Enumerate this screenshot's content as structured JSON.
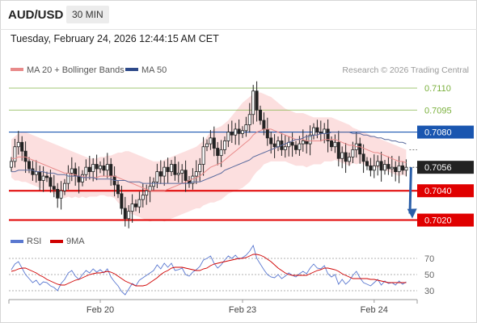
{
  "header": {
    "symbol": "AUD/USD",
    "timeframe": "30 MIN"
  },
  "datetime": "Tuesday, February 24, 2026 12:44:15 AM CET",
  "legend": {
    "ma20_label": "MA 20 + Bollinger Bands",
    "ma50_label": "MA 50",
    "copyright": "Research © 2026 Trading Central"
  },
  "rsi_legend": {
    "rsi_label": "RSI",
    "ma_label": "9MA"
  },
  "colors": {
    "bullish": "#333333",
    "bearish": "#333333",
    "ma20": "#e88a8a",
    "band": "#fbd9d9",
    "ma50": "#5b6b9e",
    "support": "#e00000",
    "pivot": "#1a56b0",
    "resistance": "#7ab03c",
    "arrow": "#2a5ea8",
    "rsi": "#5a78d0",
    "rsi_ma": "#d00000"
  },
  "chart_data": [
    {
      "type": "candlestick",
      "title": "AUD/USD 30 MIN",
      "ylim": [
        0.7017,
        0.7115
      ],
      "x_ticks": [
        {
          "label": "Feb 20",
          "index": 25
        },
        {
          "label": "Feb 23",
          "index": 65
        },
        {
          "label": "Feb 24",
          "index": 102
        }
      ],
      "levels": [
        {
          "value": 0.711,
          "label": "0.7110",
          "kind": "resistance"
        },
        {
          "value": 0.7095,
          "label": "0.7095",
          "kind": "resistance"
        },
        {
          "value": 0.708,
          "label": "0.7080",
          "kind": "pivot"
        },
        {
          "value": 0.7056,
          "label": "0.7056",
          "kind": "last"
        },
        {
          "value": 0.704,
          "label": "0.7040",
          "kind": "support"
        },
        {
          "value": 0.702,
          "label": "0.7020",
          "kind": "support"
        }
      ],
      "last_price": 0.7056,
      "forecast_arrow": {
        "from": 0.7056,
        "to": 0.702
      },
      "close": [
        0.706,
        0.707,
        0.7073,
        0.7067,
        0.706,
        0.7055,
        0.7051,
        0.7053,
        0.7047,
        0.705,
        0.7049,
        0.7043,
        0.7041,
        0.7035,
        0.704,
        0.7045,
        0.7052,
        0.7055,
        0.705,
        0.7046,
        0.7051,
        0.7056,
        0.7053,
        0.7058,
        0.7055,
        0.7057,
        0.7054,
        0.7058,
        0.705,
        0.7044,
        0.7038,
        0.7028,
        0.7021,
        0.7026,
        0.7031,
        0.7029,
        0.7034,
        0.7037,
        0.704,
        0.7043,
        0.7046,
        0.7053,
        0.705,
        0.7056,
        0.7053,
        0.7058,
        0.7051,
        0.7052,
        0.7054,
        0.7047,
        0.7045,
        0.705,
        0.7053,
        0.7058,
        0.707,
        0.7072,
        0.7076,
        0.7069,
        0.7064,
        0.7068,
        0.7074,
        0.708,
        0.7078,
        0.7082,
        0.7079,
        0.7081,
        0.7085,
        0.7092,
        0.7108,
        0.7095,
        0.7088,
        0.7082,
        0.7076,
        0.7072,
        0.707,
        0.7074,
        0.7068,
        0.707,
        0.7073,
        0.7071,
        0.7068,
        0.7072,
        0.7074,
        0.7072,
        0.7078,
        0.7083,
        0.708,
        0.7079,
        0.7082,
        0.7074,
        0.707,
        0.7073,
        0.7062,
        0.7066,
        0.706,
        0.7063,
        0.7068,
        0.7072,
        0.7065,
        0.706,
        0.7057,
        0.7054,
        0.7057,
        0.706,
        0.7054,
        0.7058,
        0.7055,
        0.7056,
        0.7053,
        0.7057,
        0.7054,
        0.7056
      ],
      "ma20": [
        0.7062,
        0.7062,
        0.7063,
        0.7063,
        0.7063,
        0.7062,
        0.7061,
        0.706,
        0.7059,
        0.7058,
        0.7057,
        0.7056,
        0.7055,
        0.7054,
        0.7053,
        0.7052,
        0.7052,
        0.7051,
        0.7051,
        0.705,
        0.705,
        0.7049,
        0.7049,
        0.7049,
        0.7049,
        0.705,
        0.705,
        0.705,
        0.705,
        0.705,
        0.7049,
        0.7048,
        0.7047,
        0.7046,
        0.7045,
        0.7044,
        0.7043,
        0.7042,
        0.7041,
        0.704,
        0.704,
        0.704,
        0.704,
        0.704,
        0.7041,
        0.7042,
        0.7043,
        0.7044,
        0.7045,
        0.7046,
        0.7047,
        0.7048,
        0.7049,
        0.705,
        0.7052,
        0.7054,
        0.7056,
        0.7057,
        0.7058,
        0.7059,
        0.7061,
        0.7063,
        0.7065,
        0.7067,
        0.7069,
        0.7071,
        0.7073,
        0.7075,
        0.7078,
        0.708,
        0.7081,
        0.7082,
        0.7082,
        0.7082,
        0.7081,
        0.708,
        0.7079,
        0.7078,
        0.7077,
        0.7076,
        0.7075,
        0.7075,
        0.7075,
        0.7074,
        0.7074,
        0.7074,
        0.7074,
        0.7074,
        0.7075,
        0.7075,
        0.7075,
        0.7075,
        0.7074,
        0.7073,
        0.7072,
        0.7071,
        0.7071,
        0.707,
        0.707,
        0.7069,
        0.7068,
        0.7067,
        0.7066,
        0.7066,
        0.7065,
        0.7064,
        0.7063,
        0.7062,
        0.7061,
        0.706,
        0.706,
        0.7059
      ],
      "bb_upper": [
        0.7075,
        0.7077,
        0.7079,
        0.708,
        0.708,
        0.7079,
        0.7078,
        0.7077,
        0.7076,
        0.7075,
        0.7074,
        0.7073,
        0.7072,
        0.7071,
        0.707,
        0.7069,
        0.7068,
        0.7067,
        0.7066,
        0.7065,
        0.7064,
        0.7063,
        0.7062,
        0.7062,
        0.7062,
        0.7063,
        0.7063,
        0.7064,
        0.7064,
        0.7065,
        0.7066,
        0.7066,
        0.7067,
        0.7067,
        0.7066,
        0.7065,
        0.7064,
        0.7063,
        0.7062,
        0.7061,
        0.706,
        0.706,
        0.706,
        0.7061,
        0.7062,
        0.7063,
        0.7064,
        0.7065,
        0.7066,
        0.7067,
        0.7068,
        0.7069,
        0.707,
        0.7072,
        0.7074,
        0.7077,
        0.708,
        0.7082,
        0.7083,
        0.7084,
        0.7086,
        0.7088,
        0.7091,
        0.7094,
        0.7097,
        0.71,
        0.7102,
        0.7104,
        0.7106,
        0.7107,
        0.7107,
        0.7106,
        0.7105,
        0.7104,
        0.7102,
        0.71,
        0.7098,
        0.7096,
        0.7095,
        0.7094,
        0.7093,
        0.7093,
        0.7093,
        0.7092,
        0.7091,
        0.709,
        0.709,
        0.709,
        0.709,
        0.709,
        0.709,
        0.7089,
        0.7088,
        0.7087,
        0.7086,
        0.7085,
        0.7083,
        0.7082,
        0.7081,
        0.708,
        0.7079,
        0.7078,
        0.7077,
        0.7076,
        0.7075,
        0.7074,
        0.7073,
        0.7072,
        0.7071,
        0.707,
        0.7069,
        0.7068
      ],
      "bb_lower": [
        0.7049,
        0.7047,
        0.7047,
        0.7046,
        0.7046,
        0.7045,
        0.7044,
        0.7043,
        0.7042,
        0.7041,
        0.704,
        0.7039,
        0.7038,
        0.7037,
        0.7036,
        0.7035,
        0.7036,
        0.7035,
        0.7036,
        0.7035,
        0.7036,
        0.7035,
        0.7036,
        0.7036,
        0.7036,
        0.7037,
        0.7037,
        0.7036,
        0.7036,
        0.7035,
        0.7032,
        0.703,
        0.7027,
        0.7025,
        0.7024,
        0.7023,
        0.7022,
        0.7021,
        0.702,
        0.7019,
        0.702,
        0.702,
        0.702,
        0.7019,
        0.702,
        0.7021,
        0.7022,
        0.7023,
        0.7024,
        0.7025,
        0.7026,
        0.7027,
        0.7028,
        0.7028,
        0.703,
        0.7031,
        0.7032,
        0.7032,
        0.7033,
        0.7034,
        0.7036,
        0.7038,
        0.7039,
        0.704,
        0.7041,
        0.7042,
        0.7044,
        0.7046,
        0.705,
        0.7053,
        0.7055,
        0.7058,
        0.7059,
        0.706,
        0.706,
        0.706,
        0.706,
        0.706,
        0.7059,
        0.7058,
        0.7057,
        0.7057,
        0.7057,
        0.7056,
        0.7057,
        0.7058,
        0.7058,
        0.7058,
        0.706,
        0.706,
        0.706,
        0.7061,
        0.706,
        0.7059,
        0.7058,
        0.7057,
        0.7059,
        0.7058,
        0.7059,
        0.7058,
        0.7057,
        0.7056,
        0.7055,
        0.7056,
        0.7055,
        0.7054,
        0.7053,
        0.7052,
        0.7051,
        0.705,
        0.7051,
        0.705
      ],
      "ma50": [
        0.7053,
        0.7053,
        0.7054,
        0.7054,
        0.7054,
        0.7054,
        0.7054,
        0.7053,
        0.7053,
        0.7053,
        0.7052,
        0.7052,
        0.7052,
        0.7051,
        0.7051,
        0.7051,
        0.705,
        0.705,
        0.705,
        0.705,
        0.7049,
        0.7049,
        0.7049,
        0.7049,
        0.7048,
        0.7048,
        0.7048,
        0.7048,
        0.7048,
        0.7047,
        0.7047,
        0.7047,
        0.7047,
        0.7046,
        0.7046,
        0.7046,
        0.7046,
        0.7045,
        0.7045,
        0.7045,
        0.7045,
        0.7045,
        0.7045,
        0.7045,
        0.7045,
        0.7045,
        0.7045,
        0.7045,
        0.7045,
        0.7045,
        0.7045,
        0.7046,
        0.7046,
        0.7046,
        0.7047,
        0.7048,
        0.7049,
        0.705,
        0.7051,
        0.7052,
        0.7054,
        0.7055,
        0.7056,
        0.7057,
        0.7058,
        0.7059,
        0.706,
        0.7061,
        0.7063,
        0.7064,
        0.7065,
        0.7066,
        0.7067,
        0.7068,
        0.7069,
        0.707,
        0.7071,
        0.7072,
        0.7073,
        0.7074,
        0.7075,
        0.7075,
        0.7076,
        0.7077,
        0.7077,
        0.7078,
        0.7078,
        0.7079,
        0.7079,
        0.7079,
        0.708,
        0.708,
        0.708,
        0.708,
        0.708,
        0.708,
        0.7079,
        0.7079,
        0.7079,
        0.7078,
        0.7078,
        0.7077,
        0.7077,
        0.7076,
        0.7076,
        0.7075,
        0.7075,
        0.7074,
        0.7074,
        0.7073,
        0.7073,
        0.7072
      ]
    },
    {
      "type": "line",
      "title": "RSI",
      "ylim": [
        22,
        78
      ],
      "y_ticks": [
        70,
        50,
        30
      ],
      "series": [
        {
          "name": "RSI",
          "values": [
            56,
            63,
            66,
            58,
            50,
            45,
            40,
            43,
            37,
            41,
            40,
            36,
            34,
            30,
            39,
            44,
            52,
            55,
            48,
            44,
            50,
            55,
            52,
            57,
            53,
            56,
            52,
            57,
            47,
            41,
            36,
            29,
            25,
            32,
            39,
            36,
            43,
            46,
            49,
            52,
            55,
            62,
            57,
            64,
            59,
            64,
            55,
            56,
            58,
            50,
            48,
            53,
            56,
            60,
            68,
            70,
            73,
            64,
            58,
            62,
            68,
            73,
            70,
            74,
            69,
            71,
            74,
            79,
            86,
            70,
            63,
            56,
            50,
            47,
            46,
            50,
            45,
            48,
            52,
            49,
            47,
            51,
            54,
            51,
            58,
            63,
            58,
            57,
            61,
            51,
            47,
            50,
            38,
            44,
            38,
            42,
            49,
            54,
            46,
            40,
            38,
            36,
            40,
            44,
            37,
            42,
            39,
            40,
            37,
            42,
            38,
            41
          ]
        },
        {
          "name": "9MA",
          "values": [
            54,
            55,
            57,
            58,
            58,
            56,
            54,
            52,
            49,
            47,
            44,
            42,
            40,
            38,
            37,
            37,
            39,
            41,
            43,
            44,
            46,
            48,
            50,
            51,
            52,
            52,
            53,
            54,
            53,
            51,
            48,
            45,
            42,
            40,
            38,
            36,
            36,
            36,
            37,
            40,
            43,
            46,
            50,
            53,
            55,
            58,
            59,
            59,
            59,
            58,
            57,
            56,
            55,
            55,
            57,
            58,
            61,
            63,
            64,
            65,
            66,
            67,
            68,
            69,
            70,
            70,
            71,
            73,
            75,
            75,
            74,
            72,
            69,
            66,
            62,
            58,
            55,
            52,
            50,
            49,
            49,
            49,
            49,
            49,
            51,
            53,
            55,
            56,
            58,
            58,
            57,
            56,
            54,
            51,
            49,
            47,
            45,
            45,
            45,
            45,
            45,
            44,
            44,
            43,
            42,
            41,
            40,
            40,
            40,
            40,
            40,
            40
          ]
        }
      ]
    }
  ]
}
